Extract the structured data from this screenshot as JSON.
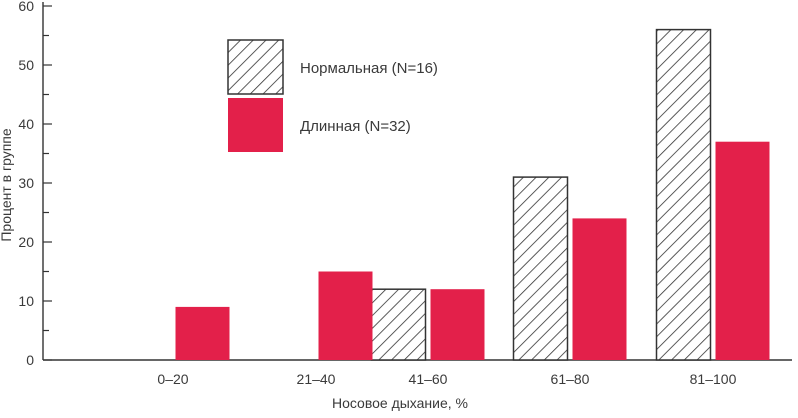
{
  "chart_data": {
    "type": "bar",
    "xlabel": "Носовое дыхание, %",
    "ylabel": "Процент в группе",
    "categories": [
      "0–20",
      "21–40",
      "41–60",
      "61–80",
      "81–100"
    ],
    "series": [
      {
        "name": "Нормальная (N=16)",
        "values": [
          0,
          0,
          12,
          31,
          56
        ],
        "fill": "hatch",
        "color": "#333333"
      },
      {
        "name": "Длинная (N=32)",
        "values": [
          9,
          15,
          12,
          24,
          37
        ],
        "fill": "solid",
        "color": "#e3204a"
      }
    ],
    "ylim": [
      0,
      60
    ],
    "yticks": [
      0,
      10,
      20,
      30,
      40,
      50,
      60
    ],
    "grid": false,
    "legend_position": "top-left"
  }
}
